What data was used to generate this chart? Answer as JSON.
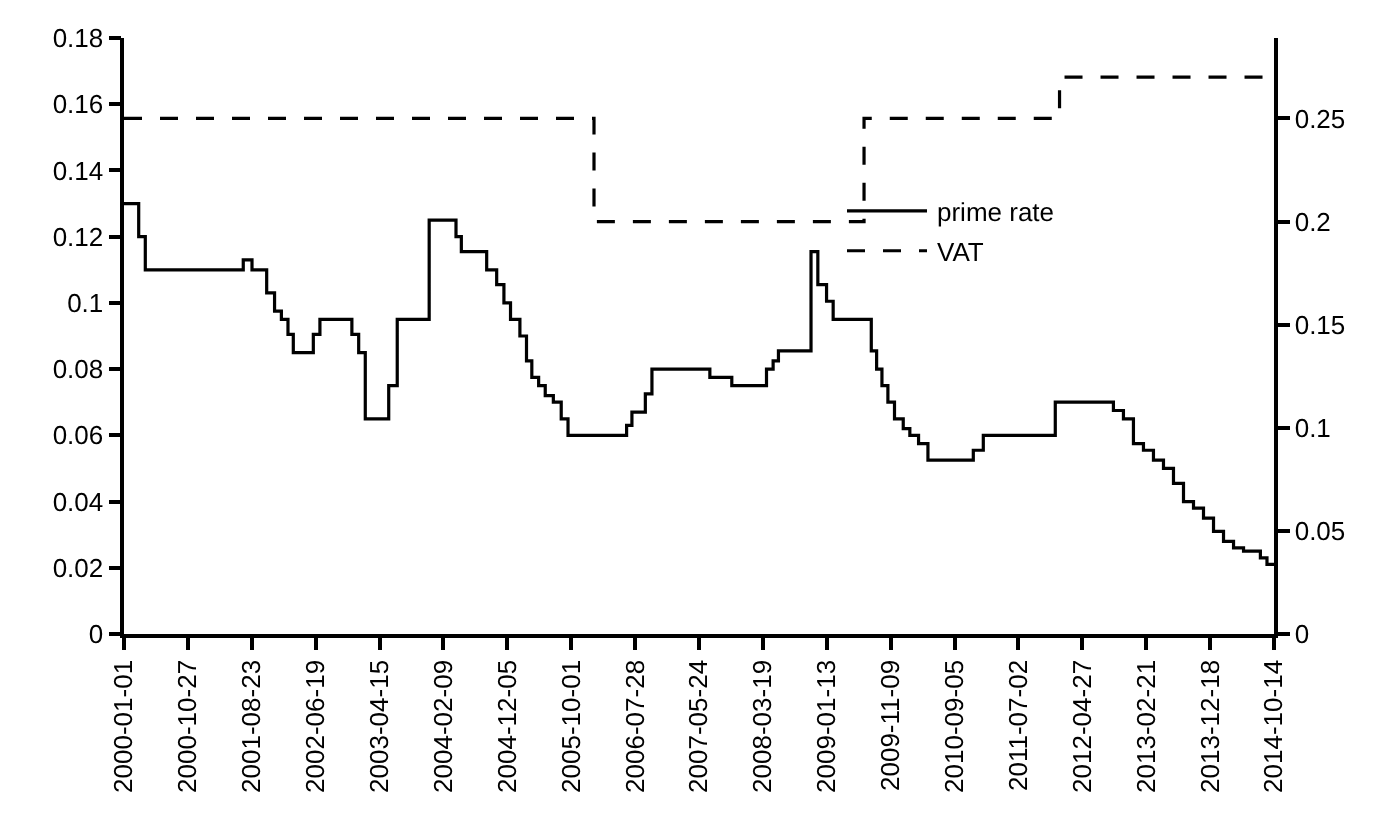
{
  "chart_data": {
    "type": "step",
    "x": [
      "2000-01-01",
      "2000-03-10",
      "2000-04-10",
      "2001-07-14",
      "2001-08-24",
      "2001-11-01",
      "2001-12-08",
      "2002-01-09",
      "2002-02-09",
      "2002-03-06",
      "2002-06-08",
      "2002-07-09",
      "2002-12-06",
      "2003-01-07",
      "2003-02-07",
      "2003-05-28",
      "2003-07-07",
      "2003-12-04",
      "2004-04-08",
      "2004-05-03",
      "2004-08-30",
      "2004-10-16",
      "2004-11-19",
      "2004-12-20",
      "2005-02-02",
      "2005-03-05",
      "2005-03-30",
      "2005-05-01",
      "2005-06-01",
      "2005-07-09",
      "2005-08-15",
      "2005-09-16",
      "2006-06-18",
      "2006-07-13",
      "2006-09-14",
      "2006-10-15",
      "2007-07-14",
      "2007-10-25",
      "2008-04-05",
      "2008-05-06",
      "2008-05-31",
      "2008-10-31",
      "2008-12-02",
      "2009-01-12",
      "2009-02-12",
      "2009-08-10",
      "2009-09-04",
      "2009-09-29",
      "2009-10-27",
      "2009-11-27",
      "2010-01-07",
      "2010-02-07",
      "2010-03-20",
      "2010-05-03",
      "2010-12-02",
      "2011-01-18",
      "2011-12-22",
      "2012-09-20",
      "2012-11-06",
      "2012-12-23",
      "2013-02-08",
      "2013-03-27",
      "2013-05-13",
      "2013-06-29",
      "2013-08-15",
      "2013-10-01",
      "2013-11-17",
      "2014-01-03",
      "2014-02-19",
      "2014-04-07",
      "2014-05-24",
      "2014-08-11",
      "2014-09-11",
      "2014-10-14"
    ],
    "series": [
      {
        "name": "prime rate",
        "color": "#000000",
        "line_style": "solid",
        "values": [
          0.13,
          0.12,
          0.11,
          0.113,
          0.11,
          0.103,
          0.0975,
          0.095,
          0.0905,
          0.085,
          0.0905,
          0.095,
          0.0905,
          0.085,
          0.065,
          0.075,
          0.095,
          0.125,
          0.12,
          0.1155,
          0.11,
          0.1055,
          0.1,
          0.095,
          0.09,
          0.0825,
          0.0775,
          0.075,
          0.072,
          0.07,
          0.065,
          0.06,
          0.063,
          0.067,
          0.0725,
          0.08,
          0.0775,
          0.075,
          0.08,
          0.0825,
          0.0855,
          0.1155,
          0.1055,
          0.1005,
          0.095,
          0.0855,
          0.08,
          0.075,
          0.07,
          0.065,
          0.062,
          0.06,
          0.0575,
          0.0525,
          0.0555,
          0.06,
          0.07,
          0.0675,
          0.065,
          0.0575,
          0.0555,
          0.0525,
          0.05,
          0.0455,
          0.04,
          0.038,
          0.035,
          0.031,
          0.028,
          0.026,
          0.025,
          0.023,
          0.021,
          0.021
        ]
      },
      {
        "name": "VAT",
        "color": "#000000",
        "line_style": "dashed",
        "axis": "y2",
        "x": [
          "2000-01-01",
          "2006-01-16",
          "2009-07-07",
          "2012-01-11",
          "2014-10-14"
        ],
        "values": [
          0.25,
          0.2,
          0.25,
          0.27,
          0.27
        ]
      }
    ],
    "xlim": [
      "2000-01-01",
      "2014-10-14"
    ],
    "xticks": [
      "2000-01-01",
      "2000-10-27",
      "2001-08-23",
      "2002-06-19",
      "2003-04-15",
      "2004-02-09",
      "2004-12-05",
      "2005-10-01",
      "2006-07-28",
      "2007-05-24",
      "2008-03-19",
      "2009-01-13",
      "2009-11-09",
      "2010-09-05",
      "2011-07-02",
      "2012-04-27",
      "2013-02-21",
      "2013-12-18",
      "2014-10-14"
    ],
    "ylim": [
      0,
      0.18
    ],
    "yticks": [
      0,
      0.02,
      0.04,
      0.06,
      0.08,
      0.1,
      0.12,
      0.14,
      0.16,
      0.18
    ],
    "y2lim": [
      0,
      0.289
    ],
    "y2ticks": [
      0,
      0.05,
      0.1,
      0.15,
      0.2,
      0.25
    ],
    "legend": "top right",
    "marker": "none"
  }
}
